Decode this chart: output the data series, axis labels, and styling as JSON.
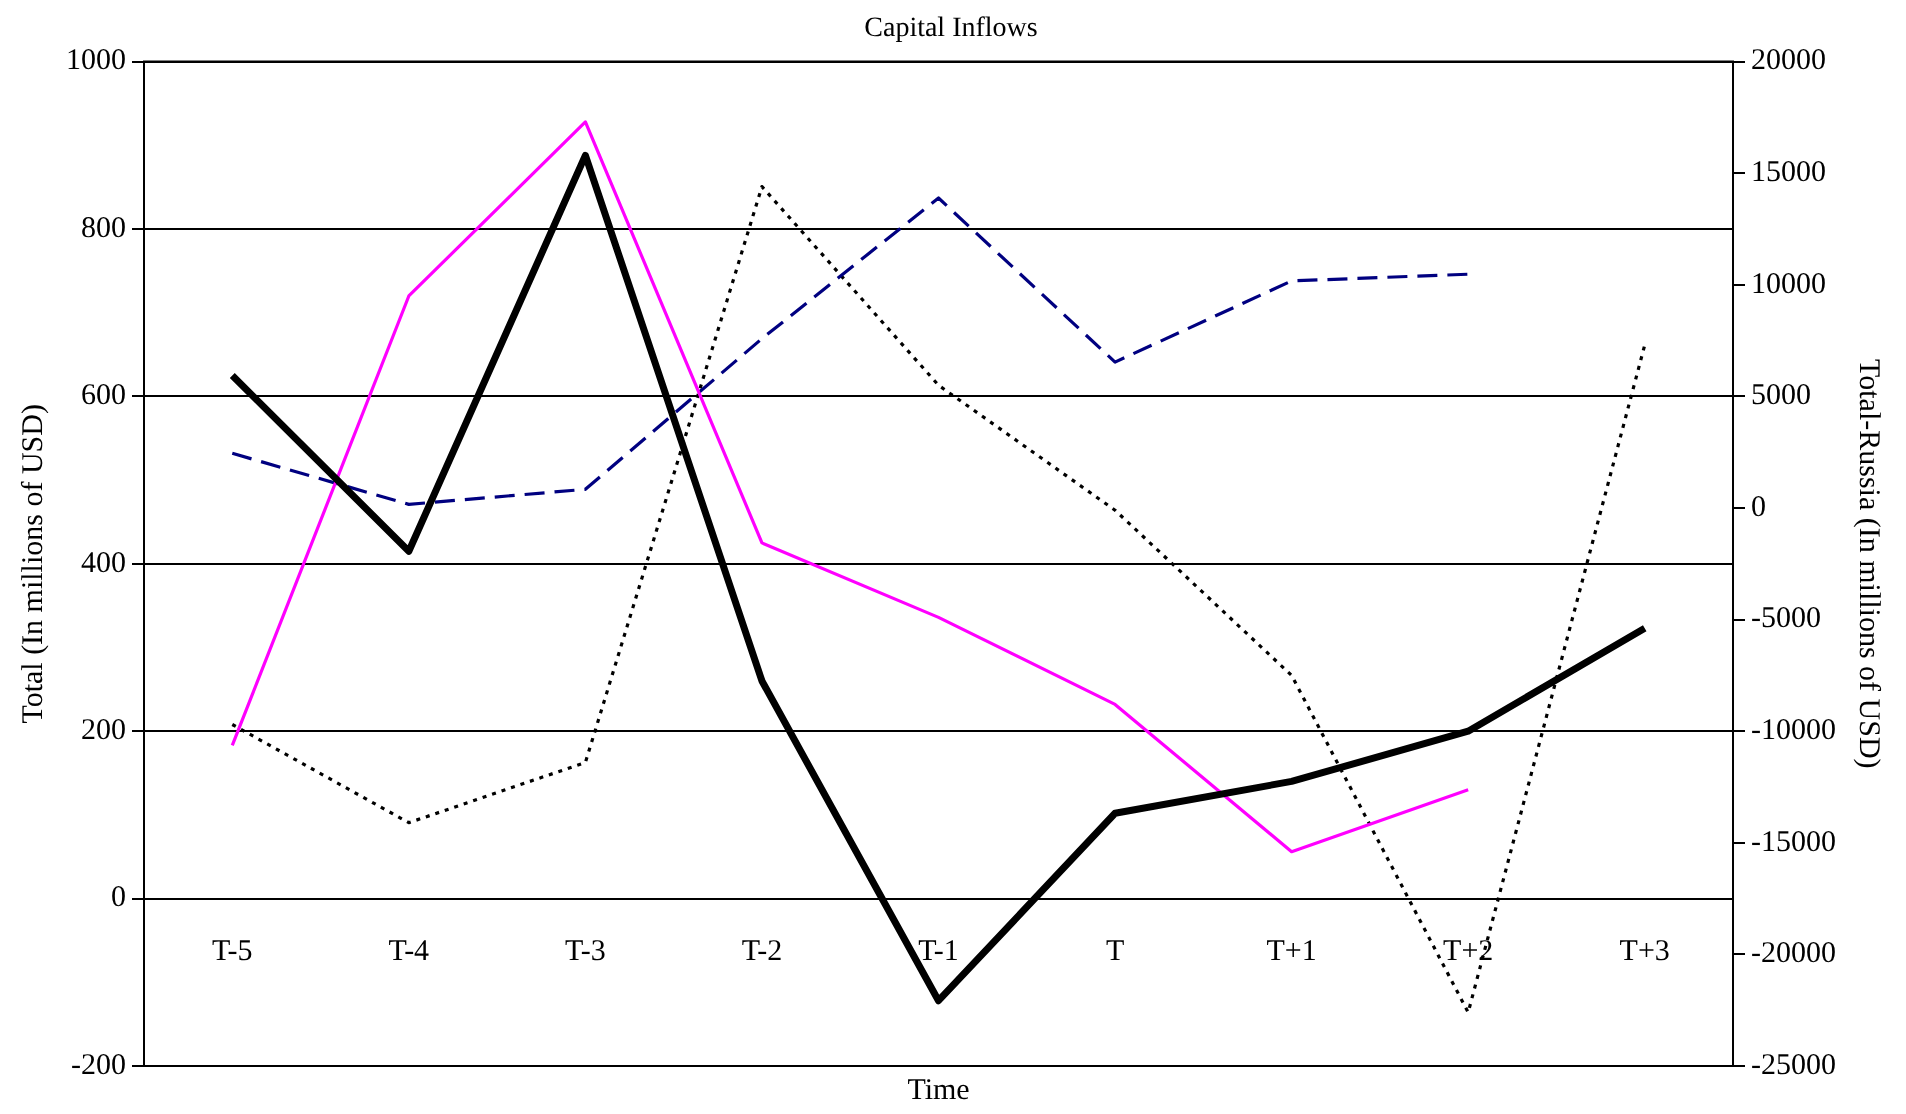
{
  "chart_data": {
    "type": "line",
    "title": "Capital Inflows",
    "xlabel": "Time",
    "ylabel": "Total (In millions of USD)",
    "y2label": "Total-Russia (In millions of USD)",
    "categories": [
      "T-5",
      "T-4",
      "T-3",
      "T-2",
      "T-1",
      "T",
      "T+1",
      "T+2",
      "T+3"
    ],
    "series": [
      {
        "color": "#000000",
        "line_style": "solid",
        "values": [
          625,
          415,
          888,
          260,
          -122,
          102,
          140,
          200,
          323
        ]
      },
      {
        "color": "#ff00ff",
        "line_style": "solid",
        "values": [
          183,
          720,
          928,
          425,
          336,
          232,
          56,
          130,
          null
        ]
      },
      {
        "color": "#000080",
        "line_style": "dashed",
        "values": [
          532,
          471,
          489,
          669,
          837,
          641,
          738,
          746,
          null
        ]
      },
      {
        "color": "#000000",
        "line_style": "dotted",
        "axis": "y2",
        "values": [
          -9700,
          -14100,
          -11400,
          14400,
          5500,
          -100,
          -7500,
          -22600,
          7300
        ]
      }
    ],
    "ylim": [
      -200,
      1000
    ],
    "yticks": [
      -200,
      0,
      200,
      400,
      600,
      800,
      1000
    ],
    "y2lim": [
      -25000,
      20000
    ],
    "y2ticks": [
      -25000,
      -20000,
      -15000,
      -10000,
      -5000,
      0,
      5000,
      10000,
      15000,
      20000
    ],
    "grid": "y",
    "legend": false,
    "marker": "none"
  }
}
